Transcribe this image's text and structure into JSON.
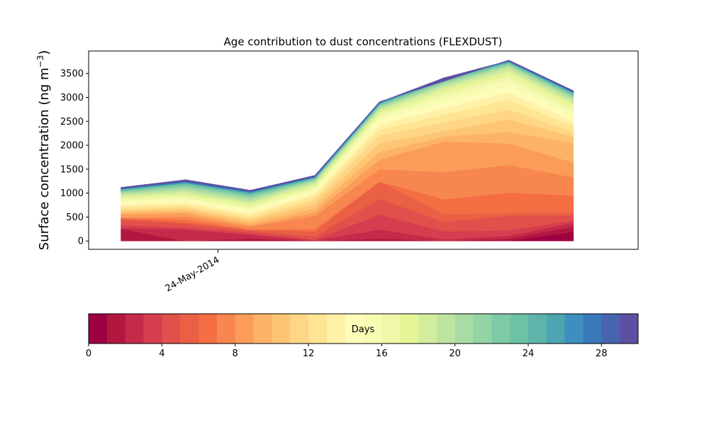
{
  "chart_data": {
    "type": "area",
    "title": "Age contribution to dust concentrations (FLEXDUST)",
    "ylabel_main": "Surface concentration (ng m",
    "ylabel_sup": "−3",
    "ylabel_close": ")",
    "xlabel": "",
    "x": [
      0,
      1,
      2,
      3,
      4,
      5,
      6,
      7
    ],
    "x_tick_positions": [
      1.5
    ],
    "x_tick_labels": [
      "24-May-2014"
    ],
    "xlim": [
      -0.5,
      8.0
    ],
    "ylim": [
      -175,
      3970
    ],
    "y_ticks": [
      0,
      500,
      1000,
      1500,
      2000,
      2500,
      3000,
      3500
    ],
    "y_tick_labels": [
      "0",
      "500",
      "1000",
      "1500",
      "2000",
      "2500",
      "3000",
      "3500"
    ],
    "grid": false,
    "stacked": true,
    "cumulative_top": {
      "description_free": true,
      "levels": [
        [
          0,
          0,
          0,
          0,
          0,
          0,
          0,
          190
        ],
        [
          250,
          0,
          50,
          0,
          50,
          0,
          50,
          300
        ],
        [
          270,
          240,
          130,
          10,
          240,
          30,
          110,
          380
        ],
        [
          330,
          280,
          170,
          30,
          550,
          200,
          220,
          430
        ],
        [
          440,
          360,
          210,
          100,
          880,
          400,
          530,
          540
        ],
        [
          470,
          390,
          230,
          200,
          1240,
          560,
          580,
          600
        ],
        [
          480,
          450,
          240,
          250,
          1240,
          870,
          1010,
          950
        ],
        [
          490,
          510,
          300,
          520,
          1500,
          1440,
          1590,
          1330
        ],
        [
          560,
          580,
          330,
          600,
          1700,
          2080,
          2040,
          1640
        ],
        [
          590,
          620,
          380,
          680,
          1860,
          2180,
          2280,
          2040
        ],
        [
          630,
          670,
          430,
          780,
          2040,
          2300,
          2540,
          2180
        ],
        [
          670,
          710,
          480,
          870,
          2200,
          2480,
          2750,
          2280
        ],
        [
          720,
          760,
          530,
          950,
          2330,
          2640,
          2950,
          2400
        ],
        [
          760,
          810,
          580,
          1000,
          2440,
          2780,
          3110,
          2500
        ],
        [
          810,
          860,
          630,
          1050,
          2530,
          2910,
          3250,
          2600
        ],
        [
          850,
          900,
          680,
          1100,
          2600,
          3020,
          3370,
          2700
        ],
        [
          890,
          950,
          730,
          1140,
          2650,
          3100,
          3460,
          2780
        ],
        [
          930,
          990,
          780,
          1180,
          2700,
          3170,
          3540,
          2860
        ],
        [
          960,
          1040,
          820,
          1220,
          2750,
          3230,
          3600,
          2920
        ],
        [
          990,
          1080,
          860,
          1250,
          2780,
          3270,
          3650,
          2970
        ],
        [
          1010,
          1120,
          900,
          1270,
          2810,
          3300,
          3680,
          3000
        ],
        [
          1030,
          1150,
          930,
          1290,
          2830,
          3330,
          3700,
          3030
        ],
        [
          1050,
          1180,
          960,
          1300,
          2850,
          3350,
          3720,
          3050
        ],
        [
          1060,
          1200,
          980,
          1310,
          2860,
          3370,
          3730,
          3070
        ],
        [
          1070,
          1210,
          1000,
          1320,
          2870,
          3380,
          3740,
          3090
        ],
        [
          1080,
          1220,
          1010,
          1330,
          2880,
          3390,
          3750,
          3100
        ],
        [
          1090,
          1230,
          1020,
          1340,
          2890,
          3400,
          3755,
          3110
        ],
        [
          1095,
          1240,
          1030,
          1345,
          2895,
          3405,
          3760,
          3115
        ],
        [
          1100,
          1250,
          1040,
          1350,
          2900,
          3410,
          3765,
          3120
        ],
        [
          1120,
          1280,
          1060,
          1370,
          2910,
          3340,
          3780,
          3140
        ]
      ]
    },
    "colorbar": {
      "label": "Days",
      "min": 0,
      "max": 30,
      "ticks": [
        0,
        4,
        8,
        12,
        16,
        20,
        24,
        28
      ],
      "tick_labels": [
        "0",
        "4",
        "8",
        "12",
        "16",
        "20",
        "24",
        "28"
      ]
    },
    "colors": [
      "#9e0142",
      "#b2173f",
      "#c52a4a",
      "#d53e4f",
      "#e1504a",
      "#ea6044",
      "#f46d43",
      "#f8864f",
      "#fb9d59",
      "#fdb365",
      "#fdc574",
      "#fed685",
      "#fee593",
      "#fff1a8",
      "#fffbb8",
      "#f7fcb2",
      "#eef8a8",
      "#e6f598",
      "#d3ed9c",
      "#bee5a0",
      "#a9dca4",
      "#94d4a4",
      "#7fcaa6",
      "#6cc2a5",
      "#5eb4a9",
      "#4ca5b1",
      "#3e8fc0",
      "#3878b9",
      "#4764ae",
      "#5e4fa2"
    ]
  }
}
